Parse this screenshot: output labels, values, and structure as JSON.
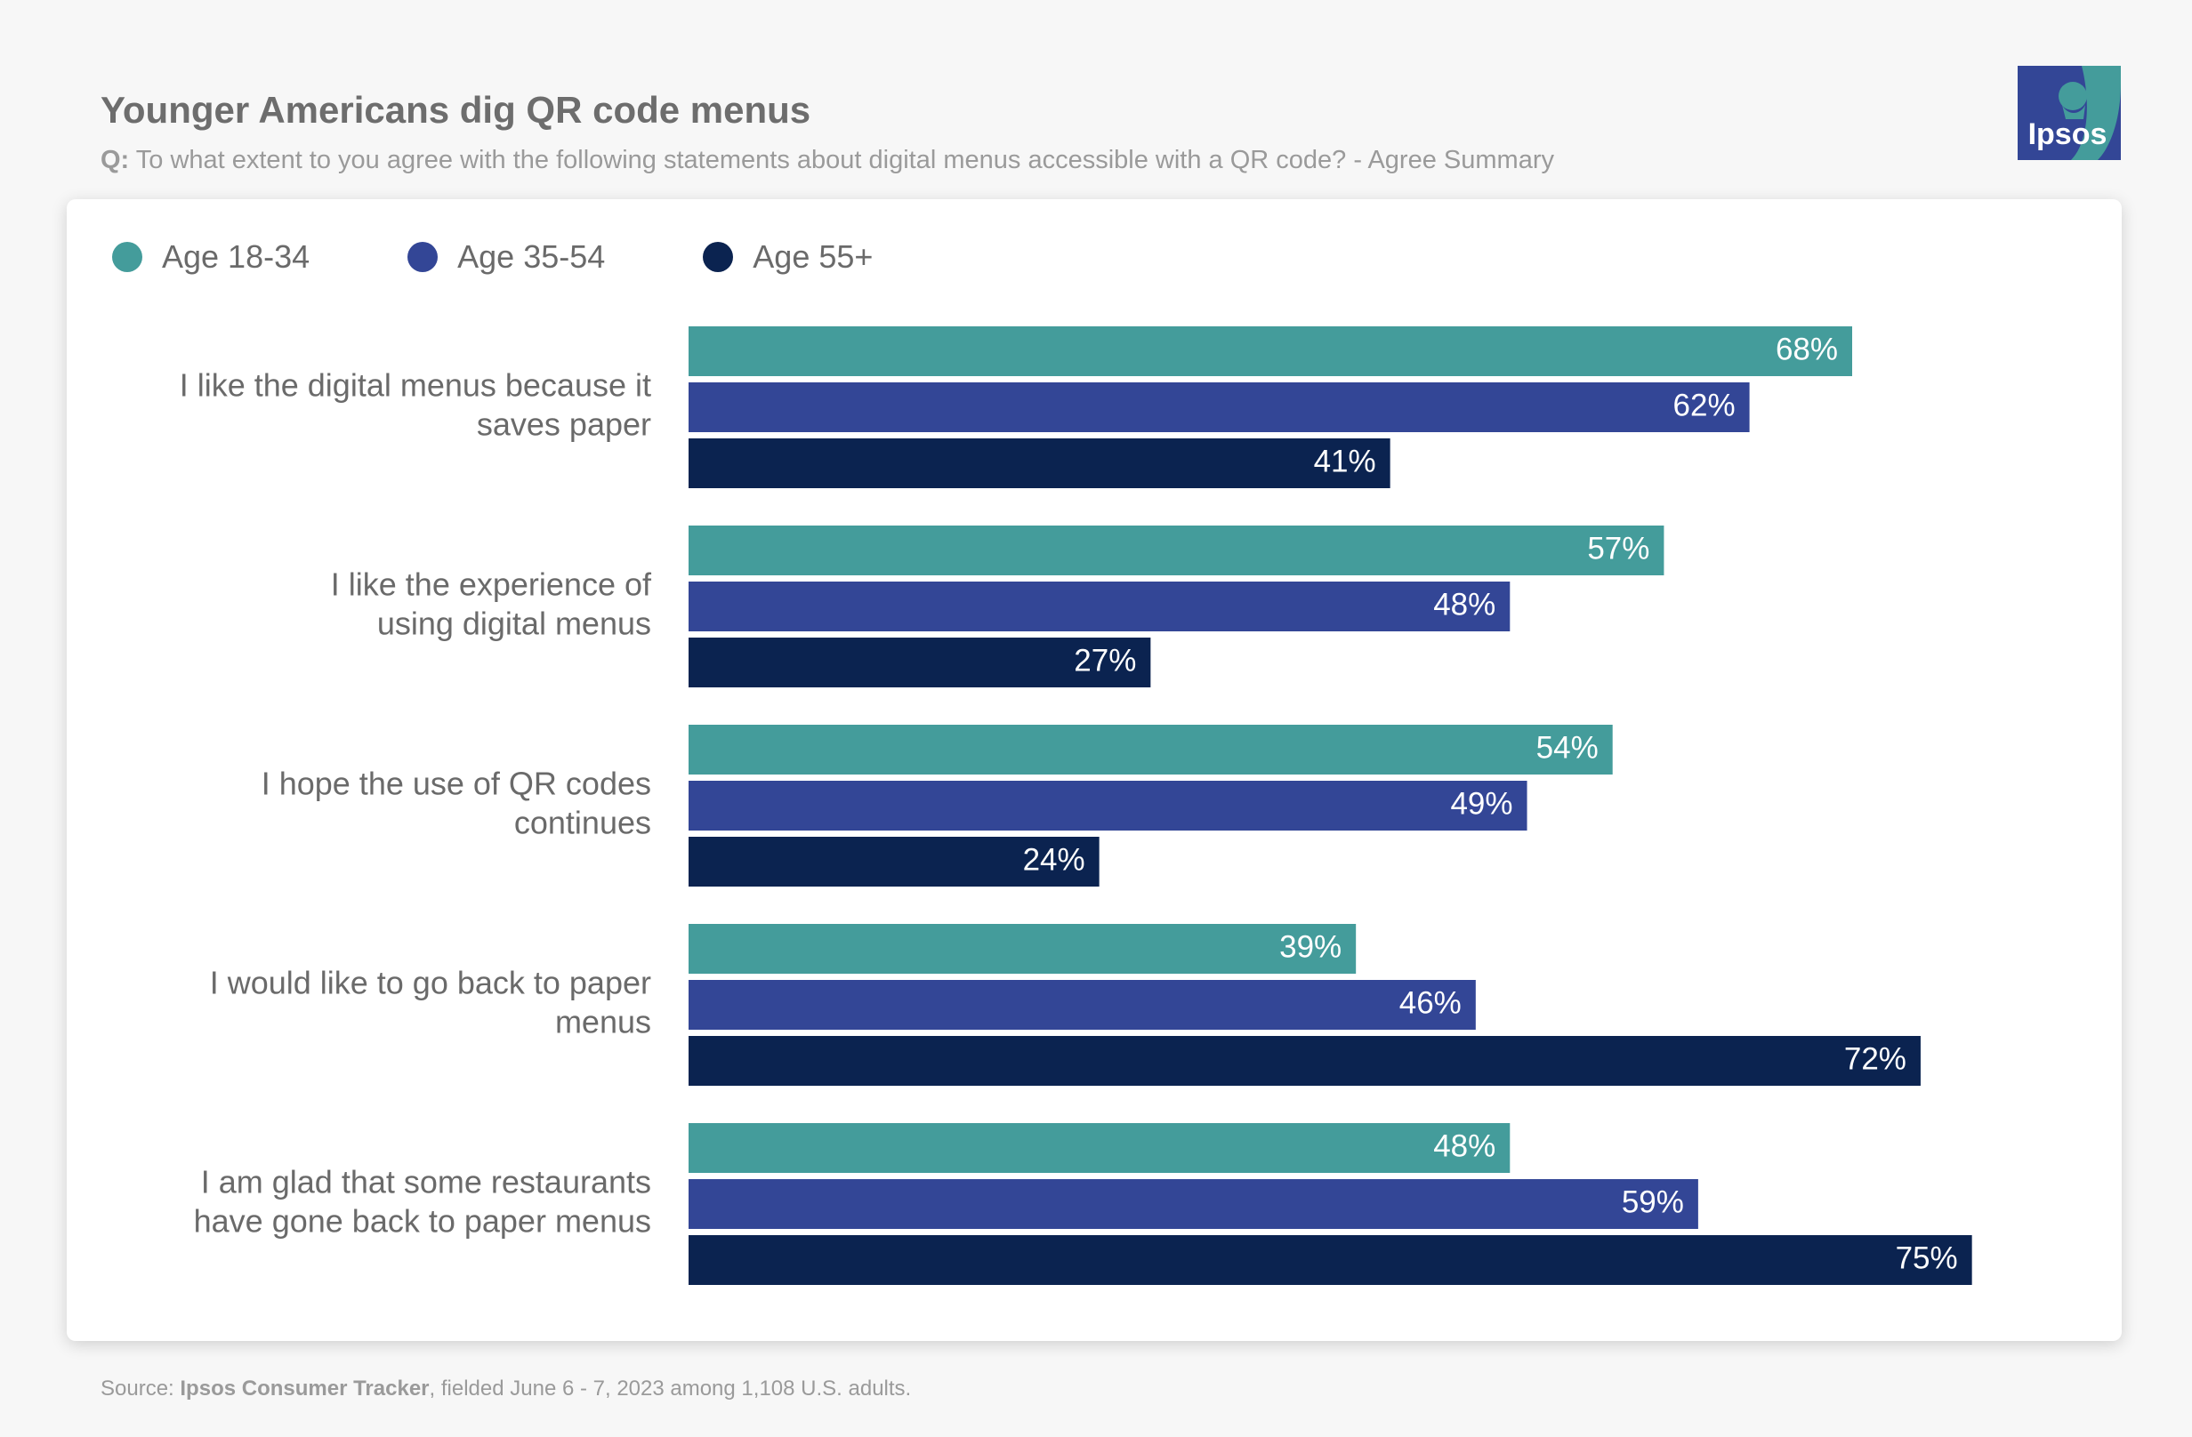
{
  "header": {
    "title": "Younger Americans dig QR code menus",
    "question_prefix": "Q:",
    "question_text": " To what extent to you agree with the following statements about digital menus accessible with a QR code? - Agree Summary"
  },
  "logo": {
    "text": "Ipsos",
    "icon": "ipsos-logo-icon"
  },
  "colors": {
    "age_18_34": "#449c9b",
    "age_35_54": "#334696",
    "age_55_plus": "#0b2350"
  },
  "chart_data": {
    "type": "bar",
    "orientation": "horizontal",
    "title": "Younger Americans dig QR code menus",
    "value_suffix": "%",
    "xlim": [
      0,
      100
    ],
    "legend_position": "top-left",
    "categories": [
      [
        "I like the digital menus because it",
        "saves paper"
      ],
      [
        "I like the experience of",
        "using digital menus"
      ],
      [
        "I hope the use of QR codes",
        "continues"
      ],
      [
        "I would like to go back to paper",
        "menus"
      ],
      [
        "I am glad that some restaurants",
        "have gone back to paper menus"
      ]
    ],
    "series": [
      {
        "name": "Age 18-34",
        "color": "#449c9b",
        "values": [
          68,
          57,
          54,
          39,
          48
        ]
      },
      {
        "name": "Age 35-54",
        "color": "#334696",
        "values": [
          62,
          48,
          49,
          46,
          59
        ]
      },
      {
        "name": "Age 55+",
        "color": "#0b2350",
        "values": [
          41,
          27,
          24,
          72,
          75
        ]
      }
    ]
  },
  "footer": {
    "prefix": "Source: ",
    "source_name": "Ipsos Consumer Tracker",
    "suffix": ", fielded June 6 - 7, 2023 among 1,108 U.S. adults."
  }
}
